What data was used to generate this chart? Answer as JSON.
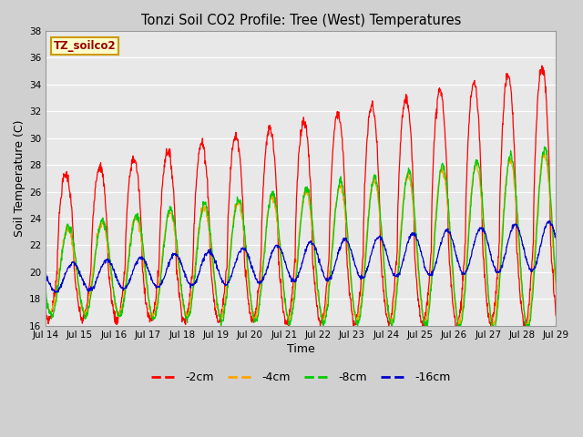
{
  "title": "Tonzi Soil CO2 Profile: Tree (West) Temperatures",
  "xlabel": "Time",
  "ylabel": "Soil Temperature (C)",
  "ylim": [
    16,
    38
  ],
  "yticks": [
    16,
    18,
    20,
    22,
    24,
    26,
    28,
    30,
    32,
    34,
    36,
    38
  ],
  "xtick_labels": [
    "Jul 14",
    "Jul 15",
    "Jul 16",
    "Jul 17",
    "Jul 18",
    "Jul 19",
    "Jul 20",
    "Jul 21",
    "Jul 22",
    "Jul 23",
    "Jul 24",
    "Jul 25",
    "Jul 26",
    "Jul 27",
    "Jul 28",
    "Jul 29"
  ],
  "legend_labels": [
    "-2cm",
    "-4cm",
    "-8cm",
    "-16cm"
  ],
  "line_colors": [
    "#ff0000",
    "#ffa500",
    "#00cc00",
    "#0000cc"
  ],
  "watermark_text": "TZ_soilco2",
  "watermark_bg": "#ffffcc",
  "watermark_border": "#cc9900",
  "fig_bg_color": "#d0d0d0",
  "plot_bg_color": "#e8e8e8"
}
